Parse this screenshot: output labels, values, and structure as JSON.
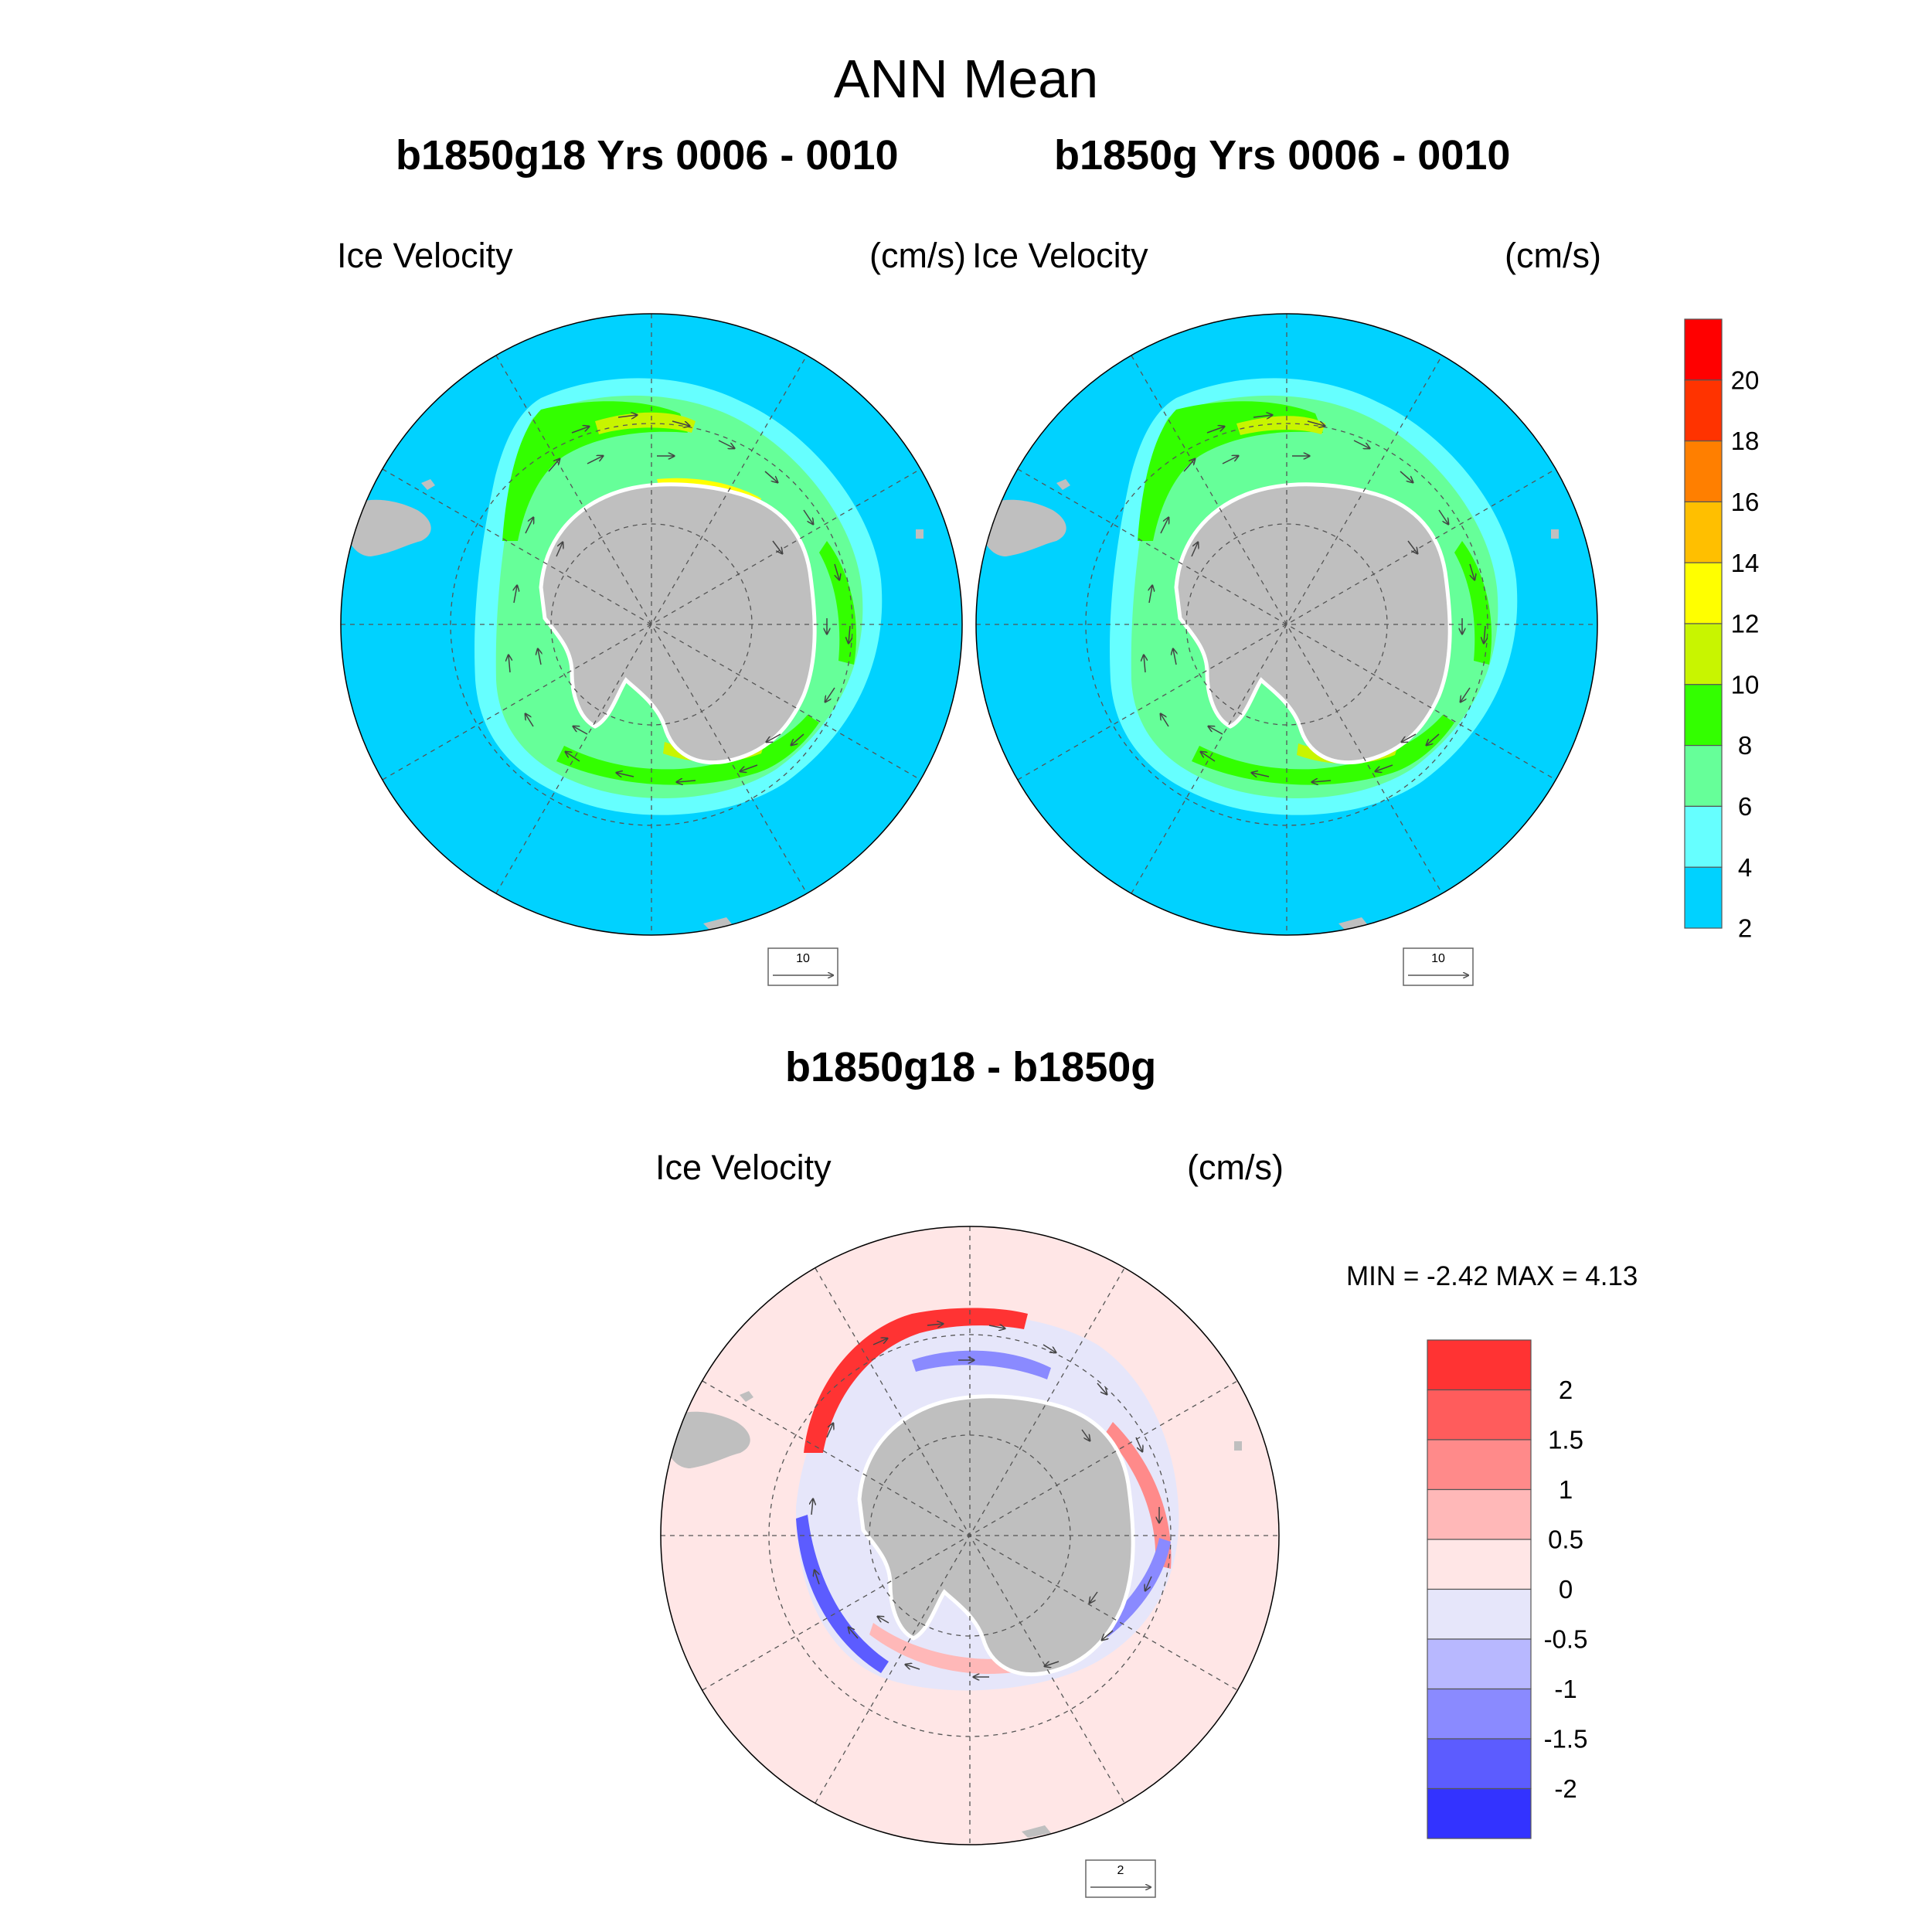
{
  "title": "ANN Mean",
  "panels": [
    {
      "title": "b1850g18  Yrs 0006 - 0010",
      "left_label": "Ice Velocity",
      "right_label": "(cm/s)",
      "ref_vector": "10"
    },
    {
      "title": "b1850g  Yrs 0006 - 0010",
      "left_label": "Ice Velocity",
      "right_label": "(cm/s)",
      "ref_vector": "10"
    },
    {
      "title": "b1850g18 - b1850g",
      "left_label": "Ice Velocity",
      "right_label": "(cm/s)",
      "ref_vector": "2",
      "stats": "MIN =  -2.42 MAX =   4.13"
    }
  ],
  "colorbar_top": {
    "labels": [
      "20",
      "18",
      "16",
      "14",
      "12",
      "10",
      "8",
      "6",
      "4",
      "2"
    ],
    "colors": [
      "#ff0000",
      "#ff3300",
      "#ff7f00",
      "#ffbf00",
      "#ffff00",
      "#c8f500",
      "#33ff00",
      "#66ff99",
      "#66ffff",
      "#00d2ff"
    ]
  },
  "colorbar_bottom": {
    "labels": [
      "2",
      "1.5",
      "1",
      "0.5",
      "0",
      "-0.5",
      "-1",
      "-1.5",
      "-2"
    ],
    "colors": [
      "#ff3333",
      "#ff5c5c",
      "#ff8a8a",
      "#ffb8b8",
      "#ffe6e6",
      "#e6e6fa",
      "#b8b8ff",
      "#8a8aff",
      "#5c5cff",
      "#3333ff"
    ]
  },
  "map_colors": {
    "ocean_top": "#00d2ff",
    "ocean_bottom": "#ffe6e6",
    "land": "#bfbfbf"
  }
}
